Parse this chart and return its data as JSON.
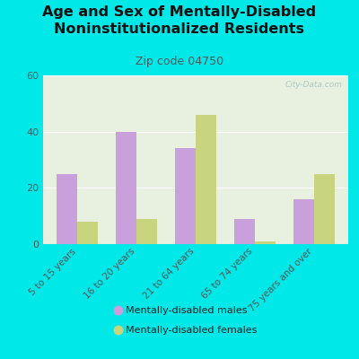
{
  "title": "Age and Sex of Mentally-Disabled\nNoninstitutionalized Residents",
  "subtitle": "Zip code 04750",
  "categories": [
    "5 to 15 years",
    "16 to 20 years",
    "21 to 64 years",
    "65 to 74 years",
    "75 years and over"
  ],
  "males": [
    25,
    40,
    34,
    9,
    16
  ],
  "females": [
    8,
    9,
    46,
    1,
    25
  ],
  "male_color": "#c9a0dc",
  "female_color": "#c8d47e",
  "ylim": [
    0,
    60
  ],
  "yticks": [
    0,
    20,
    40,
    60
  ],
  "bg_color": "#00e8e8",
  "plot_bg": "#e8f0e0",
  "bar_width": 0.35,
  "title_fontsize": 11.5,
  "subtitle_fontsize": 9,
  "tick_label_fontsize": 7.5,
  "ytick_fontsize": 8,
  "legend_labels": [
    "Mentally-disabled males",
    "Mentally-disabled females"
  ],
  "watermark": "City-Data.com"
}
